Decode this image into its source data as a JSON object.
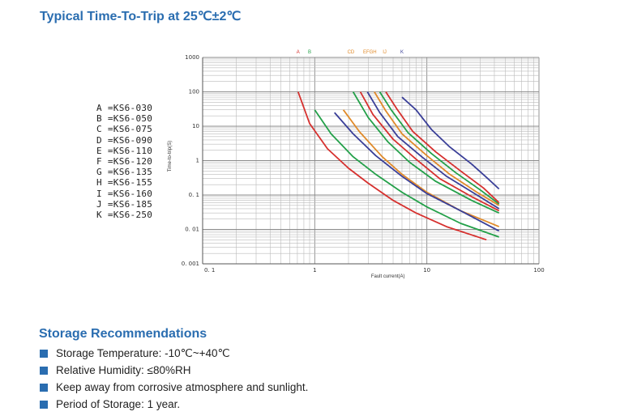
{
  "title": "Typical Time-To-Trip at 25℃±2℃",
  "chart_data": {
    "type": "line",
    "x_scale": "log",
    "y_scale": "log",
    "xlim": [
      0.1,
      100
    ],
    "ylim": [
      0.001,
      1000
    ],
    "ylabel": "Time-to-trip(S)",
    "xlabel": "Fault current(A)",
    "x_ticks": [
      "0. 1",
      "1",
      "10",
      "100"
    ],
    "y_ticks": [
      "0. 001",
      "0. 01",
      "0. 1",
      "1",
      "10",
      "100",
      "1000"
    ],
    "curve_labels": [
      "A",
      "B",
      "CD",
      "EFGH",
      "IJ",
      "K"
    ],
    "legend_entries": [
      "A =KS6-030",
      "B =KS6-050",
      "C =KS6-075",
      "D =KS6-090",
      "E =KS6-110",
      "F =KS6-120",
      "G =KS6-135",
      "H =KS6-155",
      "I =KS6-160",
      "J =KS6-185",
      "K =KS6-250"
    ],
    "series": [
      {
        "color": "#d6302e",
        "points": [
          [
            0.71,
            100
          ],
          [
            0.9,
            12
          ],
          [
            1.3,
            2.2
          ],
          [
            2,
            0.6
          ],
          [
            3,
            0.22
          ],
          [
            5,
            0.07
          ],
          [
            8,
            0.03
          ],
          [
            15,
            0.012
          ],
          [
            34,
            0.005
          ]
        ]
      },
      {
        "color": "#23a049",
        "points": [
          [
            1.0,
            30
          ],
          [
            1.4,
            6
          ],
          [
            2.2,
            1.3
          ],
          [
            3.5,
            0.4
          ],
          [
            6,
            0.12
          ],
          [
            10,
            0.045
          ],
          [
            20,
            0.015
          ],
          [
            44,
            0.006
          ]
        ]
      },
      {
        "color": "#e08a2a",
        "points": [
          [
            1.8,
            30
          ],
          [
            2.5,
            7
          ],
          [
            4,
            1.3
          ],
          [
            6,
            0.4
          ],
          [
            10,
            0.12
          ],
          [
            20,
            0.035
          ],
          [
            44,
            0.012
          ]
        ]
      },
      {
        "color": "#3a3f98",
        "points": [
          [
            1.5,
            25
          ],
          [
            2.2,
            6
          ],
          [
            3.5,
            1.4
          ],
          [
            6,
            0.35
          ],
          [
            10,
            0.11
          ],
          [
            20,
            0.035
          ],
          [
            44,
            0.009
          ]
        ]
      },
      {
        "color": "#23a049",
        "points": [
          [
            2.2,
            100
          ],
          [
            3,
            18
          ],
          [
            4.5,
            3.5
          ],
          [
            7,
            0.9
          ],
          [
            12,
            0.25
          ],
          [
            25,
            0.07
          ],
          [
            44,
            0.03
          ]
        ]
      },
      {
        "color": "#d6302e",
        "points": [
          [
            2.55,
            100
          ],
          [
            3.3,
            22
          ],
          [
            5,
            4.2
          ],
          [
            8,
            1.1
          ],
          [
            13,
            0.3
          ],
          [
            25,
            0.09
          ],
          [
            44,
            0.035
          ]
        ]
      },
      {
        "color": "#3a3f98",
        "points": [
          [
            2.95,
            100
          ],
          [
            3.8,
            25
          ],
          [
            5.5,
            5
          ],
          [
            9,
            1.3
          ],
          [
            15,
            0.35
          ],
          [
            28,
            0.1
          ],
          [
            44,
            0.04
          ]
        ]
      },
      {
        "color": "#e08a2a",
        "points": [
          [
            3.4,
            100
          ],
          [
            4.3,
            28
          ],
          [
            6,
            6
          ],
          [
            10,
            1.4
          ],
          [
            16,
            0.4
          ],
          [
            28,
            0.12
          ],
          [
            44,
            0.05
          ]
        ]
      },
      {
        "color": "#23a049",
        "points": [
          [
            3.8,
            100
          ],
          [
            4.8,
            30
          ],
          [
            6.8,
            6.5
          ],
          [
            11,
            1.6
          ],
          [
            18,
            0.45
          ],
          [
            30,
            0.14
          ],
          [
            44,
            0.055
          ]
        ]
      },
      {
        "color": "#d6302e",
        "points": [
          [
            4.3,
            100
          ],
          [
            5.4,
            32
          ],
          [
            7.5,
            7
          ],
          [
            12,
            1.8
          ],
          [
            20,
            0.5
          ],
          [
            32,
            0.16
          ],
          [
            44,
            0.06
          ]
        ]
      },
      {
        "color": "#3a3f98",
        "points": [
          [
            6,
            70
          ],
          [
            8,
            30
          ],
          [
            11,
            8
          ],
          [
            16,
            2.5
          ],
          [
            25,
            0.8
          ],
          [
            35,
            0.3
          ],
          [
            44,
            0.15
          ]
        ]
      }
    ]
  },
  "storage": {
    "title": "Storage Recommendations",
    "items": [
      "Storage Temperature: -10℃~+40℃",
      "Relative Humidity: ≤80%RH",
      "Keep away from corrosive atmosphere and sunlight.",
      "Period of Storage: 1 year."
    ]
  },
  "colors": {
    "accent": "#2a6db0",
    "label_red": "#d6302e",
    "label_green": "#23a049",
    "label_orange": "#e08a2a",
    "label_blue": "#3a3f98"
  }
}
